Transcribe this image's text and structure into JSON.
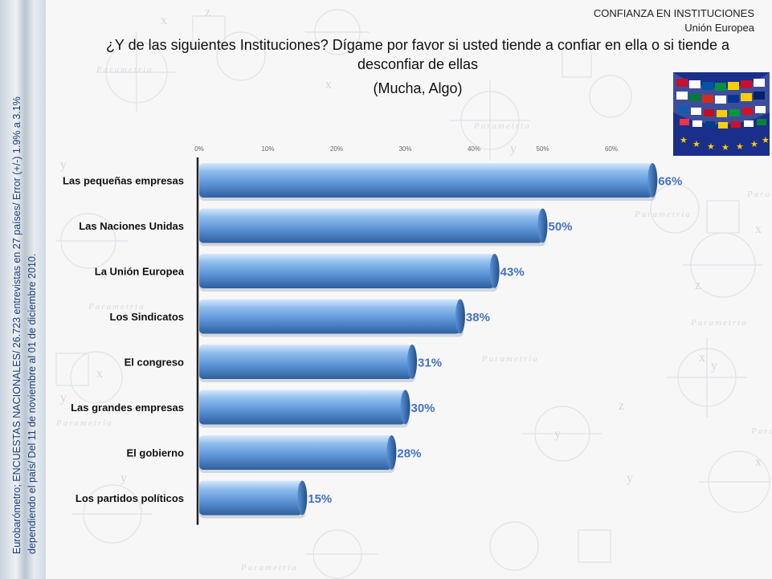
{
  "header": {
    "title": "CONFIANZA EN INSTITUCIONES",
    "subtitle": "Unión Europea"
  },
  "question": {
    "line1": "¿Y de las siguientes Instituciones? Dígame por favor si usted tiende a confiar en ella o si tiende a",
    "line2": "desconfiar de ellas",
    "qualifier": "(Mucha, Algo)"
  },
  "side_note": {
    "line1": "Eurobarómetro; ENCUESTAS NACIONALES/ 26.723 entrevistas en 27 países/ Error (+/-) 1.9% a 3.1%",
    "line2": "dependiendo el país/ Del 11 de noviembre al 01 de diciembre 2010."
  },
  "watermark": {
    "text": "Parametría"
  },
  "colors": {
    "bar_light": "#9cc3ee",
    "bar_mid": "#5b93d6",
    "bar_dark": "#2f5f9e",
    "label": "#4472c4",
    "side_text": "#1f3f7a"
  },
  "chart_data": {
    "type": "bar",
    "orientation": "horizontal",
    "categories": [
      "Las pequeñas empresas",
      "Las Naciones Unidas",
      "La Unión Europea",
      "Los Sindicatos",
      "El congreso",
      "Las grandes empresas",
      "El gobierno",
      "Los partidos políticos"
    ],
    "values": [
      66,
      50,
      43,
      38,
      31,
      30,
      28,
      15
    ],
    "value_labels": [
      "66%",
      "50%",
      "43%",
      "38%",
      "31%",
      "30%",
      "28%",
      "15%"
    ],
    "axis_ticks": [
      "0%",
      "10%",
      "20%",
      "30%",
      "40%",
      "50%",
      "60%"
    ],
    "xlim": [
      0,
      70
    ],
    "tick_position": "top",
    "grid": false
  }
}
